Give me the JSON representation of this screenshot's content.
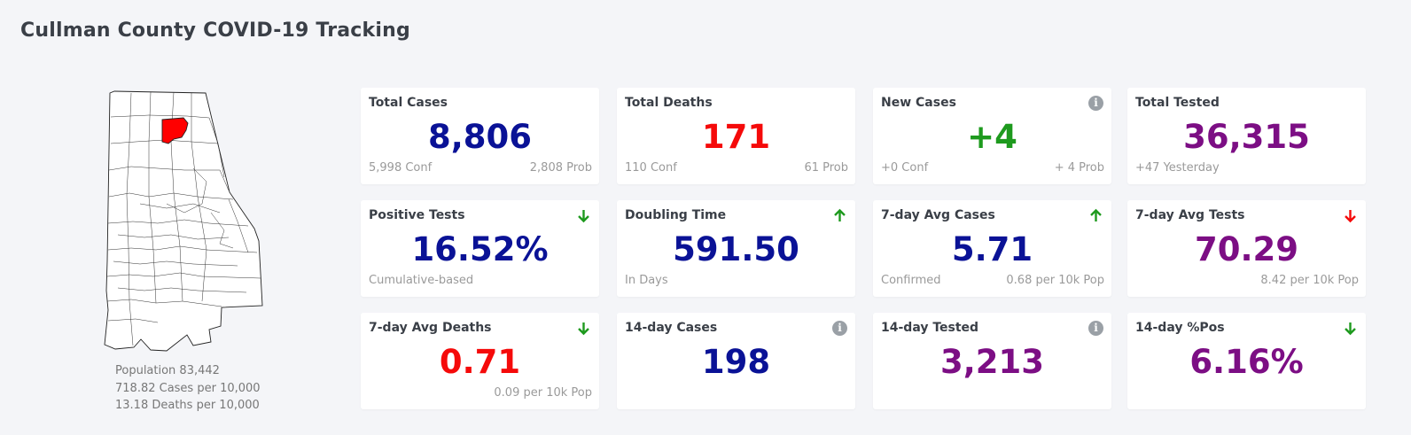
{
  "page": {
    "title": "Cullman County COVID-19 Tracking"
  },
  "county": {
    "population": "Population 83,442",
    "cases_rate": "718.82 Cases per 10,000",
    "deaths_rate": "13.18 Deaths per 10,000",
    "highlight_color": "#ff0000"
  },
  "colors": {
    "navy": "#0a1296",
    "red": "#f50a0a",
    "green": "#1e9a1e",
    "purple": "#7c0e84",
    "info_gray": "#9aa0a6"
  },
  "cards": [
    {
      "label": "Total Cases",
      "value": "8,806",
      "sub_left": "5,998 Conf",
      "sub_right": "2,808 Prob",
      "icon": ""
    },
    {
      "label": "Total Deaths",
      "value": "171",
      "sub_left": "110 Conf",
      "sub_right": "61 Prob",
      "icon": ""
    },
    {
      "label": "New Cases",
      "value": "+4",
      "sub_left": "+0 Conf",
      "sub_right": "+ 4 Prob",
      "icon": "info-icon"
    },
    {
      "label": "Total Tested",
      "value": "36,315",
      "sub_left": "+47 Yesterday",
      "sub_right": "",
      "icon": ""
    },
    {
      "label": "Positive Tests",
      "value": "16.52%",
      "sub_left": "Cumulative-based",
      "sub_right": "",
      "icon": "arrow-down-icon"
    },
    {
      "label": "Doubling Time",
      "value": "591.50",
      "sub_left": "In Days",
      "sub_right": "",
      "icon": "arrow-up-icon"
    },
    {
      "label": "7-day Avg Cases",
      "value": "5.71",
      "sub_left": "Confirmed",
      "sub_right": "0.68 per 10k Pop",
      "icon": "arrow-up-icon"
    },
    {
      "label": "7-day Avg Tests",
      "value": "70.29",
      "sub_left": "",
      "sub_right": "8.42 per 10k Pop",
      "icon": "arrow-down-icon"
    },
    {
      "label": "7-day Avg Deaths",
      "value": "0.71",
      "sub_left": "",
      "sub_right": "0.09 per 10k Pop",
      "icon": "arrow-down-icon"
    },
    {
      "label": "14-day Cases",
      "value": "198",
      "sub_left": "",
      "sub_right": "",
      "icon": "info-icon"
    },
    {
      "label": "14-day Tested",
      "value": "3,213",
      "sub_left": "",
      "sub_right": "",
      "icon": "info-icon"
    },
    {
      "label": "14-day %Pos",
      "value": "6.16%",
      "sub_left": "",
      "sub_right": "",
      "icon": "arrow-down-icon"
    }
  ]
}
